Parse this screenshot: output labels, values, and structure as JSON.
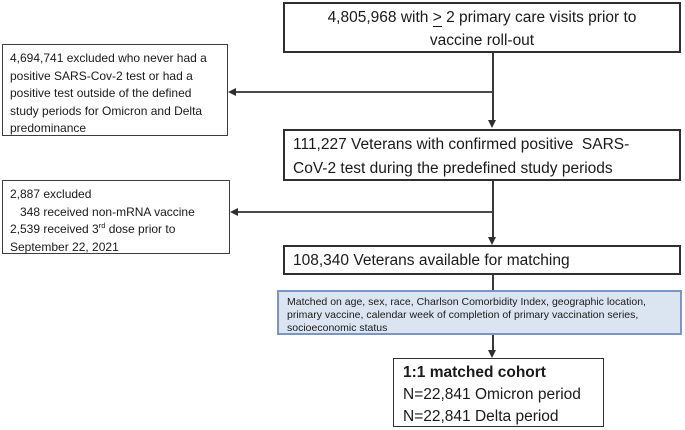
{
  "title": "Veteran cohort selection flow diagram",
  "colors": {
    "background": "#ffffff",
    "box_border": "#2f2f2f",
    "text": "#1a1a1a",
    "connector_line": "#3d3d3d",
    "matched_box_fill": "#dbe5f1",
    "matched_box_border": "#7b95c4"
  },
  "boxes": {
    "eligible": {
      "line1_before": "4,805,968 with ",
      "line1_gte": ">",
      "line1_after": " 2 primary care visits prior to",
      "line2": "vaccine roll-out"
    },
    "excluded_no_positive": {
      "lines": [
        "4,694,741 excluded who never had a",
        "positive SARS-Cov-2 test or had a",
        "positive test outside of the defined",
        "study periods for Omicron and Delta",
        "predominance"
      ]
    },
    "confirmed_positive": {
      "line1": "111,227 Veterans with confirmed positive  SARS-",
      "line2": "CoV-2 test during the predefined study periods"
    },
    "excluded_vaccine": {
      "line1": "2,887 excluded",
      "line2": "   348 received non-mRNA vaccine",
      "line3_pre": "2,539 received 3",
      "line3_sup": "rd",
      "line3_post": " dose prior to",
      "line4": "September 22, 2021"
    },
    "available_for_matching": {
      "text": "108,340 Veterans available for matching"
    },
    "matching_criteria": {
      "lines": [
        "Matched on age, sex, race, Charlson Comorbidity Index, geographic location,",
        "primary vaccine, calendar week of completion of primary vaccination series,",
        "socioeconomic status"
      ]
    },
    "matched_cohort": {
      "title": "1:1 matched cohort",
      "line2": "N=22,841 Omicron period",
      "line3": "N=22,841 Delta period"
    }
  }
}
